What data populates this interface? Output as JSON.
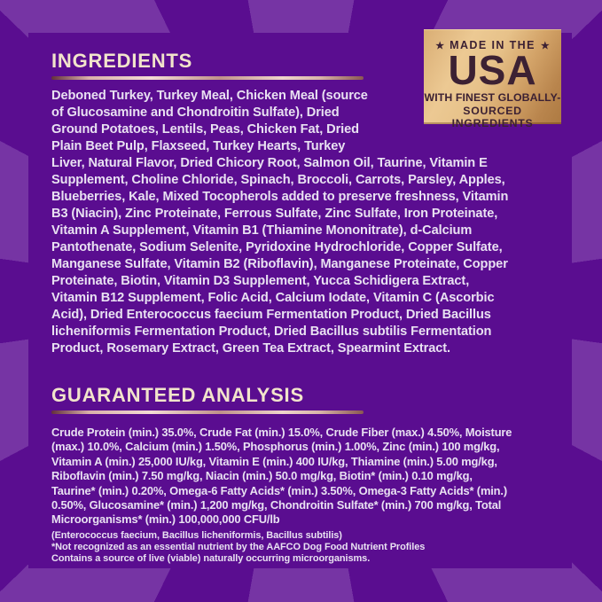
{
  "badge": {
    "star": "★",
    "top_label": "MADE IN THE",
    "country": "USA",
    "subtitle_line1": "WITH FINEST GLOBALLY-",
    "subtitle_line2": "SOURCED INGREDIENTS"
  },
  "ingredients": {
    "heading": "INGREDIENTS",
    "lines": [
      "Deboned Turkey, Turkey Meal, Chicken Meal (source",
      "of Glucosamine and Chondroitin Sulfate), Dried",
      "Ground Potatoes, Lentils, Peas, Chicken Fat, Dried",
      "Plain Beet Pulp, Flaxseed, Turkey Hearts, Turkey",
      "Liver, Natural Flavor, Dried Chicory Root, Salmon Oil, Taurine, Vitamin E",
      "Supplement, Choline Chloride, Spinach, Broccoli, Carrots, Parsley, Apples,",
      "Blueberries, Kale, Mixed Tocopherols added to preserve freshness, Vitamin",
      "B3 (Niacin), Zinc Proteinate, Ferrous Sulfate, Zinc Sulfate, Iron Proteinate,",
      "Vitamin A Supplement, Vitamin B1 (Thiamine Mononitrate), d-Calcium",
      "Pantothenate, Sodium Selenite, Pyridoxine Hydrochloride, Copper Sulfate,",
      "Manganese Sulfate, Vitamin B2 (Riboflavin), Manganese Proteinate, Copper",
      "Proteinate, Biotin, Vitamin D3 Supplement, Yucca Schidigera Extract,",
      "Vitamin B12 Supplement, Folic Acid, Calcium Iodate, Vitamin C (Ascorbic",
      "Acid), Dried Enterococcus faecium Fermentation Product, Dried Bacillus",
      "licheniformis Fermentation Product, Dried Bacillus subtilis Fermentation",
      "Product, Rosemary Extract, Green Tea Extract, Spearmint Extract."
    ]
  },
  "guaranteed_analysis": {
    "heading": "GUARANTEED ANALYSIS",
    "lines": [
      "Crude Protein (min.) 35.0%, Crude Fat (min.) 15.0%, Crude Fiber (max.) 4.50%, Moisture",
      "(max.) 10.0%, Calcium (min.) 1.50%, Phosphorus (min.) 1.00%, Zinc (min.) 100 mg/kg,",
      "Vitamin A (min.) 25,000 IU/kg, Vitamin E (min.) 400 IU/kg, Thiamine (min.) 5.00 mg/kg,",
      "Riboflavin (min.) 7.50 mg/kg, Niacin (min.) 50.0 mg/kg, Biotin* (min.) 0.10 mg/kg,",
      "Taurine* (min.) 0.20%, Omega-6 Fatty Acids* (min.) 3.50%, Omega-3 Fatty Acids* (min.)",
      "0.50%, Glucosamine* (min.) 1,200 mg/kg, Chondroitin Sulfate* (min.) 700 mg/kg, Total",
      "Microorganisms* (min.) 100,000,000 CFU/lb"
    ],
    "footnotes": [
      "(Enterococcus faecium, Bacillus licheniformis, Bacillus subtilis)",
      "*Not recognized as an essential nutrient by the AAFCO Dog Food Nutrient Profiles",
      "Contains a source of live (viable) naturally occurring microorganisms."
    ]
  },
  "colors": {
    "background_dark": "#5a0d90",
    "background_ray": "#7634a4",
    "heading_cream": "#f2e4cb",
    "body_text": "#e9e1f2",
    "badge_gold_light": "#ecc993",
    "badge_gold_dark": "#b9854d",
    "badge_text": "#3c2133",
    "rule_rose_gold": "#e8cdc4"
  }
}
